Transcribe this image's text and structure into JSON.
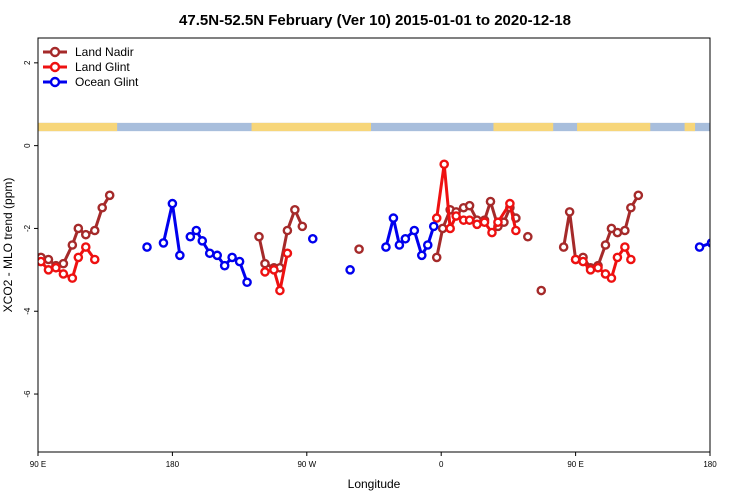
{
  "chart_data": {
    "type": "line",
    "title": "47.5N-52.5N February (Ver 10)   2015-01-01 to 2020-12-18",
    "xlabel": "Longitude",
    "ylabel": "XCO2 - MLO trend (ppm)",
    "xlim": [
      90,
      540
    ],
    "ylim": [
      -7.4,
      2.6
    ],
    "x_ticks": [
      {
        "value": 90,
        "label": "90 E"
      },
      {
        "value": 180,
        "label": "180"
      },
      {
        "value": 270,
        "label": "90 W"
      },
      {
        "value": 360,
        "label": "0"
      },
      {
        "value": 450,
        "label": "90 E"
      },
      {
        "value": 540,
        "label": "180"
      }
    ],
    "y_ticks": [
      {
        "value": 2,
        "label": "2"
      },
      {
        "value": 0,
        "label": "0"
      },
      {
        "value": -2,
        "label": "-2"
      },
      {
        "value": -4,
        "label": "-4"
      },
      {
        "value": -6,
        "label": "-6"
      }
    ],
    "grid": false,
    "legend_position": "top-left",
    "land_ocean_strip": {
      "y_range": [
        0.35,
        0.55
      ],
      "land_color": "#f7d67a",
      "ocean_color": "#a8bedc",
      "land_segments": [
        [
          90,
          143
        ],
        [
          233,
          313
        ],
        [
          395,
          435
        ],
        [
          451,
          500
        ],
        [
          523,
          530
        ]
      ]
    },
    "series": [
      {
        "name": "Land Nadir",
        "color": "#a52a2a",
        "points": [
          [
            92,
            -2.7
          ],
          [
            97,
            -2.75
          ],
          [
            102,
            -2.9
          ],
          [
            107,
            -2.85
          ],
          [
            113,
            -2.4
          ],
          [
            117,
            -2.0
          ],
          [
            122,
            -2.15
          ],
          [
            128,
            -2.05
          ],
          [
            133,
            -1.5
          ],
          [
            138,
            -1.2
          ],
          null,
          [
            238,
            -2.2
          ],
          [
            242,
            -2.85
          ],
          [
            248,
            -2.95
          ],
          [
            252,
            -2.95
          ],
          [
            257,
            -2.05
          ],
          [
            262,
            -1.55
          ],
          [
            267,
            -1.95
          ],
          null,
          [
            305,
            -2.5
          ],
          null,
          [
            357,
            -2.7
          ],
          [
            361,
            -2.0
          ],
          [
            366,
            -1.55
          ],
          [
            370,
            -1.6
          ],
          [
            375,
            -1.5
          ],
          [
            379,
            -1.45
          ],
          [
            384,
            -1.8
          ],
          [
            389,
            -1.8
          ],
          [
            393,
            -1.35
          ],
          [
            398,
            -1.95
          ],
          [
            402,
            -1.85
          ],
          [
            406,
            -1.5
          ],
          [
            410,
            -1.75
          ],
          null,
          [
            418,
            -2.2
          ],
          null,
          [
            427,
            -3.5
          ],
          null,
          [
            442,
            -2.45
          ],
          [
            446,
            -1.6
          ],
          [
            450,
            -2.75
          ],
          [
            455,
            -2.7
          ],
          [
            460,
            -2.95
          ],
          [
            465,
            -2.9
          ],
          [
            470,
            -2.4
          ],
          [
            474,
            -2.0
          ],
          [
            478,
            -2.1
          ],
          [
            483,
            -2.05
          ],
          [
            487,
            -1.5
          ],
          [
            492,
            -1.2
          ]
        ]
      },
      {
        "name": "Land Glint",
        "color": "#ee1111",
        "points": [
          [
            92,
            -2.8
          ],
          [
            97,
            -3.0
          ],
          [
            102,
            -2.95
          ],
          [
            107,
            -3.1
          ],
          [
            113,
            -3.2
          ],
          [
            117,
            -2.7
          ],
          [
            122,
            -2.45
          ],
          [
            128,
            -2.75
          ],
          null,
          [
            242,
            -3.05
          ],
          [
            248,
            -3.0
          ],
          [
            252,
            -3.5
          ],
          [
            257,
            -2.6
          ],
          null,
          [
            357,
            -1.75
          ],
          [
            362,
            -0.45
          ],
          [
            366,
            -2.0
          ],
          [
            370,
            -1.7
          ],
          [
            375,
            -1.8
          ],
          [
            379,
            -1.8
          ],
          [
            384,
            -1.9
          ],
          [
            389,
            -1.85
          ],
          [
            394,
            -2.1
          ],
          [
            398,
            -1.85
          ],
          [
            406,
            -1.4
          ],
          [
            410,
            -2.05
          ],
          null,
          [
            450,
            -2.75
          ],
          [
            455,
            -2.8
          ],
          [
            460,
            -3.0
          ],
          [
            465,
            -2.95
          ],
          [
            470,
            -3.1
          ],
          [
            474,
            -3.2
          ],
          [
            478,
            -2.7
          ],
          [
            483,
            -2.45
          ],
          [
            487,
            -2.75
          ]
        ]
      },
      {
        "name": "Ocean Glint",
        "color": "#0000ee",
        "points": [
          [
            163,
            -2.45
          ],
          null,
          [
            174,
            -2.35
          ],
          [
            180,
            -1.4
          ],
          [
            185,
            -2.65
          ],
          null,
          [
            192,
            -2.2
          ],
          [
            196,
            -2.05
          ],
          [
            200,
            -2.3
          ],
          [
            205,
            -2.6
          ],
          [
            210,
            -2.65
          ],
          [
            215,
            -2.9
          ],
          [
            220,
            -2.7
          ],
          [
            225,
            -2.8
          ],
          [
            230,
            -3.3
          ],
          null,
          [
            274,
            -2.25
          ],
          null,
          [
            299,
            -3.0
          ],
          null,
          [
            323,
            -2.45
          ],
          [
            328,
            -1.75
          ],
          [
            332,
            -2.4
          ],
          [
            336,
            -2.25
          ],
          [
            342,
            -2.05
          ],
          [
            347,
            -2.65
          ],
          [
            351,
            -2.4
          ],
          [
            355,
            -1.95
          ],
          null,
          [
            533,
            -2.45
          ],
          [
            541,
            -2.35
          ],
          [
            545,
            -1.4
          ]
        ]
      }
    ]
  }
}
